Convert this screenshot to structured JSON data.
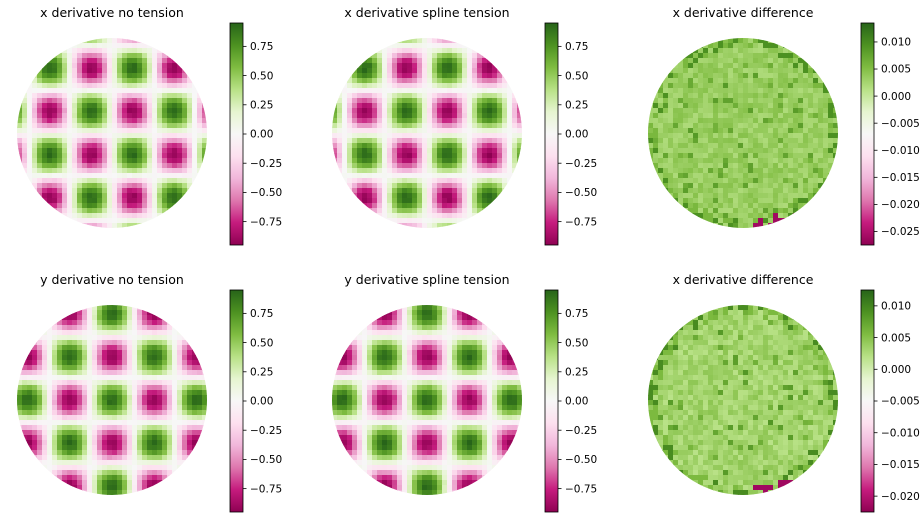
{
  "chart_data": [
    {
      "type": "heatmap",
      "title": "x derivative no tension",
      "field": "x",
      "colormap": "PiYG",
      "clim": [
        -0.95,
        0.95
      ],
      "colorbar_ticks": [
        0.75,
        0.5,
        0.25,
        0.0,
        -0.25,
        -0.5,
        -0.75
      ],
      "colorbar_labels": [
        "0.75",
        "0.50",
        "0.25",
        "0.00",
        "−0.25",
        "−0.50",
        "−0.75"
      ]
    },
    {
      "type": "heatmap",
      "title": "x derivative spline tension",
      "field": "x",
      "colormap": "PiYG",
      "clim": [
        -0.95,
        0.95
      ],
      "colorbar_ticks": [
        0.75,
        0.5,
        0.25,
        0.0,
        -0.25,
        -0.5,
        -0.75
      ],
      "colorbar_labels": [
        "0.75",
        "0.50",
        "0.25",
        "0.00",
        "−0.25",
        "−0.50",
        "−0.75"
      ]
    },
    {
      "type": "heatmap",
      "title": "x derivative difference",
      "field": "diff",
      "colormap": "PiYG",
      "clim": [
        -0.0275,
        0.0135
      ],
      "colorbar_ticks": [
        0.01,
        0.005,
        0.0,
        -0.005,
        -0.01,
        -0.015,
        -0.02,
        -0.025
      ],
      "colorbar_labels": [
        "0.010",
        "0.005",
        "0.000",
        "−0.005",
        "−0.010",
        "−0.015",
        "−0.020",
        "−0.025"
      ]
    },
    {
      "type": "heatmap",
      "title": "y derivative no tension",
      "field": "y",
      "colormap": "PiYG",
      "clim": [
        -0.95,
        0.95
      ],
      "colorbar_ticks": [
        0.75,
        0.5,
        0.25,
        0.0,
        -0.25,
        -0.5,
        -0.75
      ],
      "colorbar_labels": [
        "0.75",
        "0.50",
        "0.25",
        "0.00",
        "−0.25",
        "−0.50",
        "−0.75"
      ]
    },
    {
      "type": "heatmap",
      "title": "y derivative spline tension",
      "field": "y",
      "colormap": "PiYG",
      "clim": [
        -0.95,
        0.95
      ],
      "colorbar_ticks": [
        0.75,
        0.5,
        0.25,
        0.0,
        -0.25,
        -0.5,
        -0.75
      ],
      "colorbar_labels": [
        "0.75",
        "0.50",
        "0.25",
        "0.00",
        "−0.25",
        "−0.50",
        "−0.75"
      ]
    },
    {
      "type": "heatmap",
      "title": "x derivative difference",
      "field": "diff",
      "colormap": "PiYG",
      "clim": [
        -0.0225,
        0.0125
      ],
      "colorbar_ticks": [
        0.01,
        0.005,
        0.0,
        -0.005,
        -0.01,
        -0.015,
        -0.02
      ],
      "colorbar_labels": [
        "0.010",
        "0.005",
        "0.000",
        "−0.005",
        "−0.010",
        "−0.015",
        "−0.020"
      ]
    }
  ]
}
